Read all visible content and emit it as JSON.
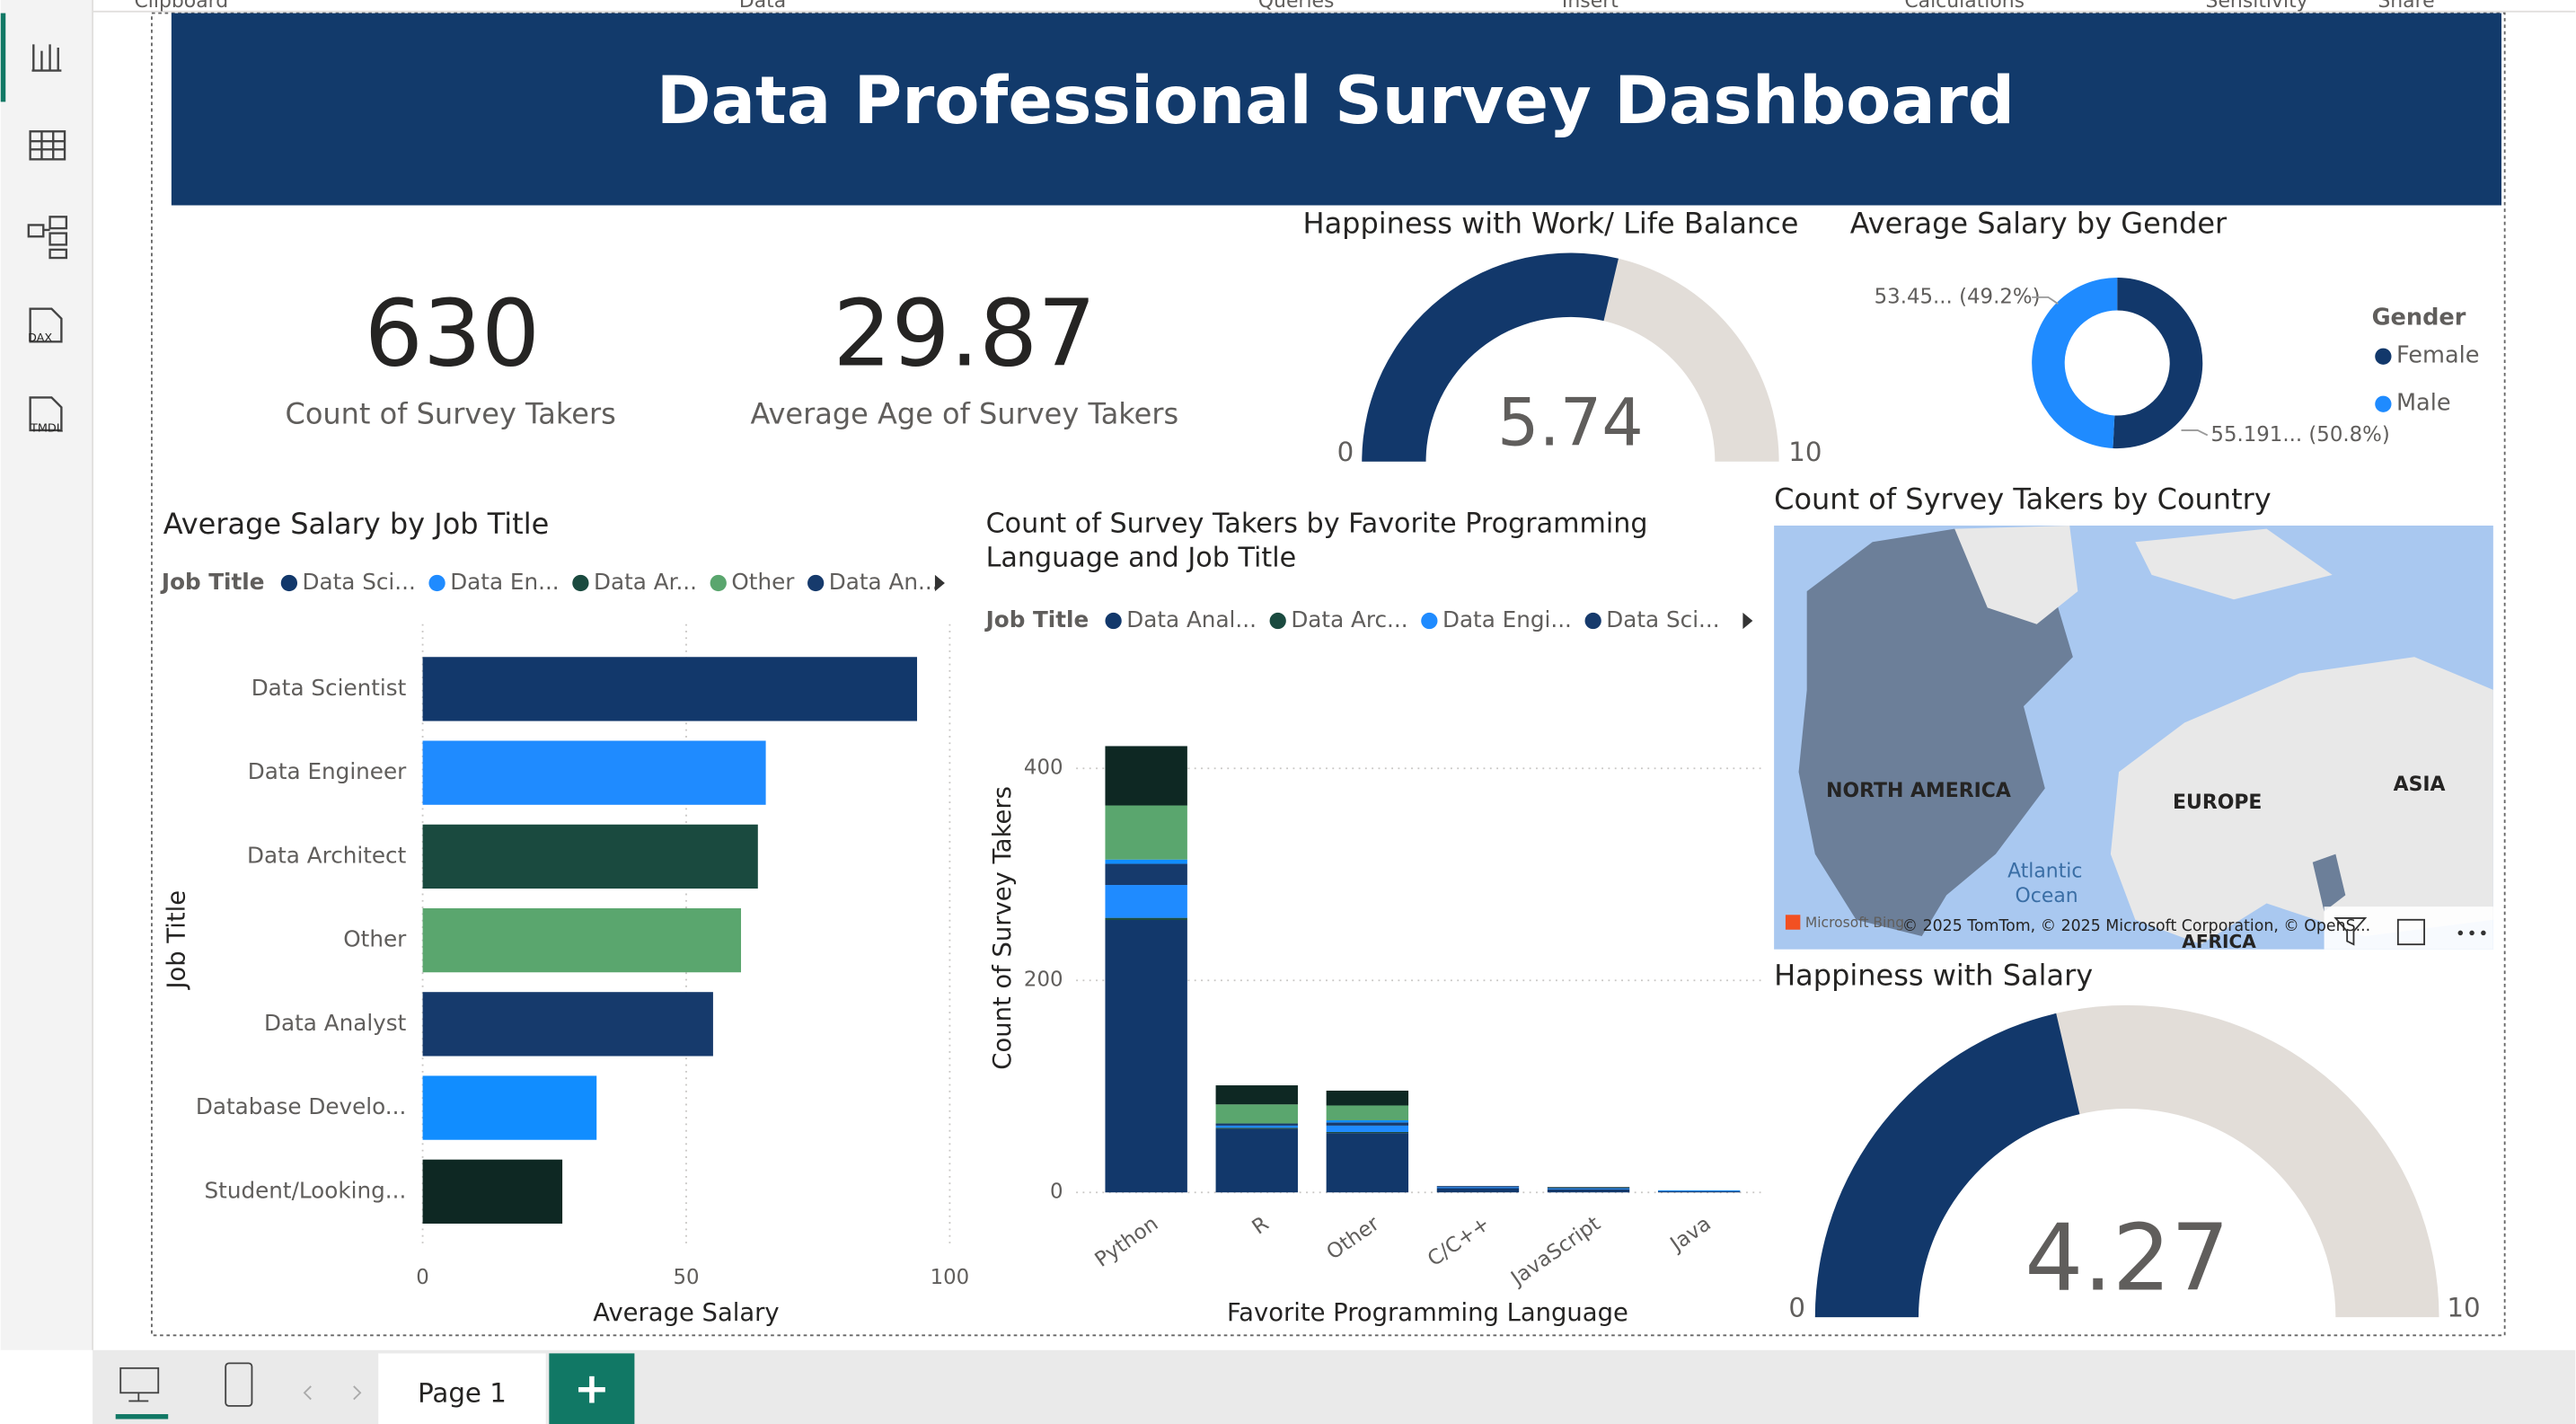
{
  "ribbon": {
    "groups": [
      "Clipboard",
      "Data",
      "Queries",
      "Insert",
      "Calculations",
      "Sensitivity",
      "Share"
    ]
  },
  "sidebar": {
    "icon_labels": [
      "DAX",
      "TMDL"
    ]
  },
  "header": {
    "title": "Data Professional Survey Dashboard"
  },
  "cards": [
    {
      "value": 630,
      "label": "Count of Survey Takers"
    },
    {
      "value": 29.87,
      "label": "Average Age of Survey Takers"
    }
  ],
  "chart_data": [
    {
      "type": "gauge",
      "title": "Happiness with Work/ Life Balance",
      "value": 5.74,
      "min": 0,
      "max": 10,
      "color": "#12386b",
      "track_color": "#e2ddd8"
    },
    {
      "type": "donut",
      "title": "Average Salary by Gender",
      "legend_title": "Gender",
      "categories": [
        "Female",
        "Male"
      ],
      "values": [
        55.191,
        53.45
      ],
      "value_labels": [
        "55.191... (50.8%)",
        "53.45... (49.2%)"
      ],
      "colors": [
        "#12386b",
        "#1f8bff"
      ]
    },
    {
      "type": "hbar",
      "title": "Average Salary by Job Title",
      "legend": {
        "title": "Job Title",
        "items": [
          {
            "name": "Data Sci...",
            "color": "#12386b"
          },
          {
            "name": "Data En...",
            "color": "#1f8bff"
          },
          {
            "name": "Data Ar...",
            "color": "#1a4a3f"
          },
          {
            "name": "Other",
            "color": "#5aa66e"
          },
          {
            "name": "Data An...",
            "color": "#163a6c"
          }
        ]
      },
      "categories": [
        "Data Scientist",
        "Data Engineer",
        "Data Architect",
        "Other",
        "Data Analyst",
        "Database Develo...",
        "Student/Looking..."
      ],
      "values": [
        93.8,
        65.1,
        63.6,
        60.4,
        55.1,
        33.0,
        26.5
      ],
      "colors": [
        "#12386b",
        "#1f8bff",
        "#1a4a3f",
        "#5aa66e",
        "#163a6c",
        "#118dff",
        "#0e2823"
      ],
      "xlim": [
        0,
        100
      ],
      "xticks": [
        0,
        50,
        100
      ],
      "xlabel": "Average Salary",
      "ylabel": "Job Title",
      "grid": true
    },
    {
      "type": "stacked_bar",
      "title": "Count of Survey Takers by Favorite Programming Language and Job Title",
      "legend": {
        "title": "Job Title",
        "items": [
          {
            "name": "Data Anal...",
            "color": "#12386b"
          },
          {
            "name": "Data Arc...",
            "color": "#1a4a3f"
          },
          {
            "name": "Data Engi...",
            "color": "#1f8bff"
          },
          {
            "name": "Data Sci...",
            "color": "#163a6c"
          }
        ]
      },
      "categories": [
        "Python",
        "R",
        "Other",
        "C/C++",
        "JavaScript",
        "Java"
      ],
      "series": [
        {
          "color": "#12386b",
          "values": [
            257,
            60,
            56,
            4,
            3,
            1
          ]
        },
        {
          "color": "#1a4a3f",
          "values": [
            2,
            1,
            1,
            0,
            0,
            0
          ]
        },
        {
          "color": "#1f8bff",
          "values": [
            31,
            2,
            6,
            1,
            1,
            1
          ]
        },
        {
          "color": "#163a6c",
          "values": [
            20,
            2,
            3,
            1,
            0,
            0
          ]
        },
        {
          "color": "#118dff",
          "values": [
            4,
            0,
            2,
            0,
            0,
            0
          ]
        },
        {
          "color": "#5aa66e",
          "values": [
            51,
            18,
            14,
            0,
            0,
            0
          ]
        },
        {
          "color": "#0e2823",
          "values": [
            56,
            18,
            14,
            0,
            1,
            0
          ]
        }
      ],
      "ylim": [
        0,
        440
      ],
      "yticks": [
        0,
        200,
        400
      ],
      "xlabel": "Favorite Programming Language",
      "ylabel": "Count of Survey Takers",
      "grid": true
    },
    {
      "type": "gauge",
      "title": "Happiness with Salary",
      "value": 4.27,
      "min": 0,
      "max": 10,
      "color": "#12386b",
      "track_color": "#e2ddd8"
    }
  ],
  "map": {
    "title": "Count of Syrvey Takers by Country",
    "labels": [
      "NORTH AMERICA",
      "EUROPE",
      "ASIA",
      "AFRICA",
      "Atlantic",
      "Ocean"
    ],
    "brand": "Microsoft Bing",
    "attribution": "© 2025 TomTom, © 2025 Microsoft Corporation, © OpenS..."
  },
  "footer": {
    "page_tab": "Page 1",
    "add_button": "+"
  }
}
